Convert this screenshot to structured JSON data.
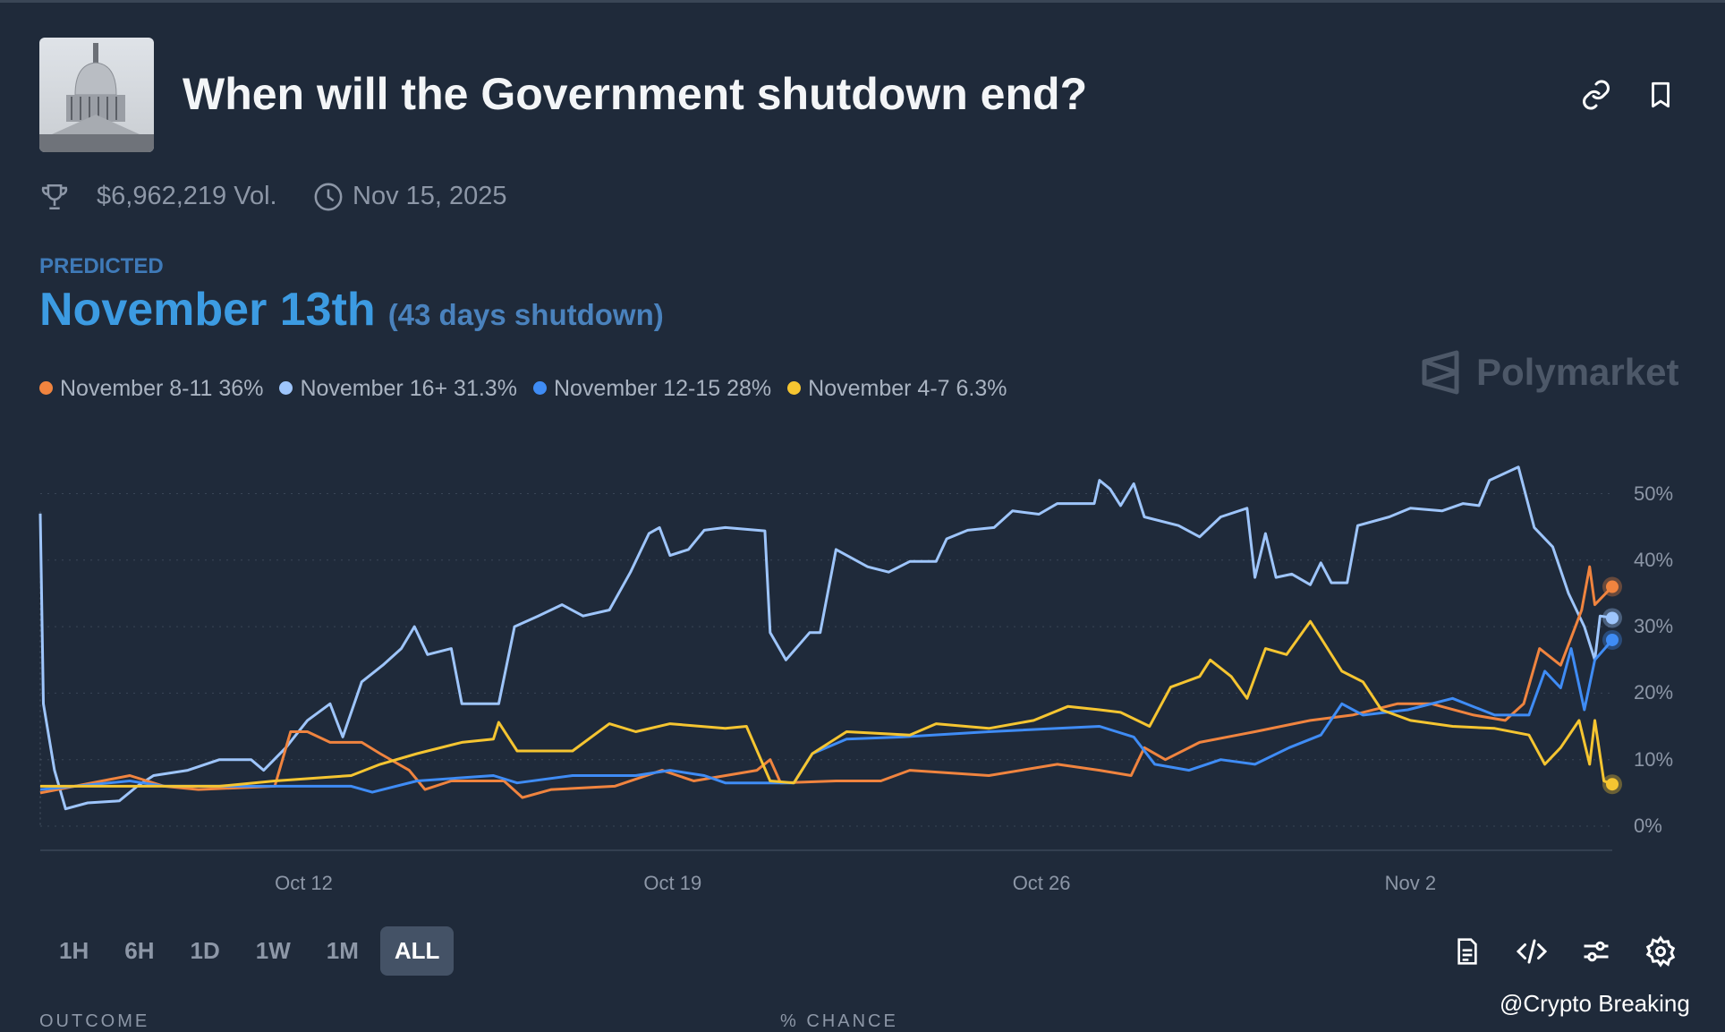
{
  "header": {
    "title": "When will the Government shutdown end?",
    "volume": "$6,962,219 Vol.",
    "end_date": "Nov 15, 2025"
  },
  "prediction": {
    "label": "PREDICTED",
    "value": "November 13th",
    "sub": "(43 days shutdown)"
  },
  "legend": [
    {
      "label": "November 8-11 36%",
      "color": "#f0843f"
    },
    {
      "label": "November 16+ 31.3%",
      "color": "#9ec5fb"
    },
    {
      "label": "November 12-15 28%",
      "color": "#3f8cf5"
    },
    {
      "label": "November 4-7 6.3%",
      "color": "#f5c531"
    }
  ],
  "brand": "Polymarket",
  "time_ranges": [
    "1H",
    "6H",
    "1D",
    "1W",
    "1M",
    "ALL"
  ],
  "active_range": "ALL",
  "table_headers": {
    "outcome": "OUTCOME",
    "chance": "% CHANCE"
  },
  "watermark": "@Crypto Breaking",
  "chart_data": {
    "type": "line",
    "x_unit": "days since Oct 7",
    "x_ticks": [
      {
        "day": 5,
        "label": "Oct 12"
      },
      {
        "day": 12,
        "label": "Oct 19"
      },
      {
        "day": 19,
        "label": "Oct 26"
      },
      {
        "day": 26,
        "label": "Nov 2"
      }
    ],
    "y_ticks": [
      {
        "v": 0,
        "label": "0%"
      },
      {
        "v": 10,
        "label": "10%"
      },
      {
        "v": 20,
        "label": "20%"
      },
      {
        "v": 30,
        "label": "30%"
      },
      {
        "v": 40,
        "label": "40%"
      },
      {
        "v": 50,
        "label": "50%"
      }
    ],
    "xlim": [
      0,
      29.83
    ],
    "ylim": [
      0,
      50
    ],
    "grid": true,
    "legend_position": "top-left",
    "series": [
      {
        "name": "November 16+",
        "color": "#9ec5fb",
        "points": [
          [
            0,
            47
          ],
          [
            0.06,
            18.4
          ],
          [
            0.27,
            8.4
          ],
          [
            0.48,
            2.6
          ],
          [
            0.9,
            3.5
          ],
          [
            1.5,
            3.8
          ],
          [
            1.84,
            6
          ],
          [
            2.15,
            7.6
          ],
          [
            2.8,
            8.4
          ],
          [
            3.4,
            10
          ],
          [
            4,
            10
          ],
          [
            4.24,
            8.4
          ],
          [
            4.66,
            11.8
          ],
          [
            5.07,
            15.9
          ],
          [
            5.5,
            18.4
          ],
          [
            5.74,
            13.4
          ],
          [
            6.1,
            21.7
          ],
          [
            6.5,
            24.2
          ],
          [
            6.85,
            26.7
          ],
          [
            7.1,
            30
          ],
          [
            7.35,
            25.8
          ],
          [
            7.8,
            26.7
          ],
          [
            8,
            18.4
          ],
          [
            8.7,
            18.4
          ],
          [
            9,
            30
          ],
          [
            9.45,
            31.6
          ],
          [
            9.9,
            33.3
          ],
          [
            10.3,
            31.6
          ],
          [
            10.8,
            32.5
          ],
          [
            11.2,
            38.2
          ],
          [
            11.55,
            44
          ],
          [
            11.75,
            44.9
          ],
          [
            11.95,
            40.7
          ],
          [
            12.3,
            41.6
          ],
          [
            12.6,
            44.5
          ],
          [
            13,
            44.9
          ],
          [
            13.75,
            44.4
          ],
          [
            13.85,
            29.1
          ],
          [
            14.15,
            25
          ],
          [
            14.6,
            29.1
          ],
          [
            14.8,
            29.1
          ],
          [
            15.1,
            41.6
          ],
          [
            15.7,
            39
          ],
          [
            16.1,
            38.2
          ],
          [
            16.5,
            39.8
          ],
          [
            17,
            39.8
          ],
          [
            17.2,
            43.2
          ],
          [
            17.6,
            44.5
          ],
          [
            18.1,
            44.9
          ],
          [
            18.45,
            47.4
          ],
          [
            18.95,
            46.9
          ],
          [
            19.3,
            48.5
          ],
          [
            20,
            48.5
          ],
          [
            20.1,
            52
          ],
          [
            20.3,
            50.7
          ],
          [
            20.5,
            48.2
          ],
          [
            20.75,
            51.5
          ],
          [
            20.95,
            46.5
          ],
          [
            21.6,
            45.2
          ],
          [
            22,
            43.5
          ],
          [
            22.4,
            46.5
          ],
          [
            22.9,
            47.8
          ],
          [
            23.05,
            37.4
          ],
          [
            23.25,
            44
          ],
          [
            23.45,
            37.4
          ],
          [
            23.75,
            37.9
          ],
          [
            24.1,
            36.3
          ],
          [
            24.3,
            39.6
          ],
          [
            24.5,
            36.6
          ],
          [
            24.8,
            36.6
          ],
          [
            25,
            45.2
          ],
          [
            25.6,
            46.5
          ],
          [
            26,
            47.8
          ],
          [
            26.6,
            47.4
          ],
          [
            27,
            48.5
          ],
          [
            27.3,
            48.2
          ],
          [
            27.5,
            52
          ],
          [
            28.05,
            54
          ],
          [
            28.35,
            44.9
          ],
          [
            28.7,
            42
          ],
          [
            29,
            35
          ],
          [
            29.3,
            30
          ],
          [
            29.5,
            25
          ],
          [
            29.6,
            31.6
          ],
          [
            29.83,
            31.3
          ]
        ]
      },
      {
        "name": "November 8-11",
        "color": "#f0843f",
        "points": [
          [
            0,
            5
          ],
          [
            1.7,
            7.6
          ],
          [
            2.35,
            6
          ],
          [
            3,
            5.5
          ],
          [
            4.45,
            6
          ],
          [
            4.75,
            14.2
          ],
          [
            5.07,
            14.2
          ],
          [
            5.5,
            12.6
          ],
          [
            6.1,
            12.6
          ],
          [
            6.45,
            10.9
          ],
          [
            7,
            8.4
          ],
          [
            7.3,
            5.5
          ],
          [
            7.8,
            6.8
          ],
          [
            8.8,
            6.8
          ],
          [
            9.15,
            4.3
          ],
          [
            9.7,
            5.5
          ],
          [
            10.9,
            6
          ],
          [
            11.8,
            8.4
          ],
          [
            12.4,
            6.8
          ],
          [
            13.6,
            8.4
          ],
          [
            13.85,
            10
          ],
          [
            14.05,
            6.5
          ],
          [
            15.1,
            6.8
          ],
          [
            15.95,
            6.8
          ],
          [
            16.5,
            8.4
          ],
          [
            18,
            7.6
          ],
          [
            19.3,
            9.3
          ],
          [
            20.1,
            8.4
          ],
          [
            20.7,
            7.6
          ],
          [
            20.95,
            11.8
          ],
          [
            21.35,
            10
          ],
          [
            22,
            12.6
          ],
          [
            23.05,
            14.2
          ],
          [
            24.1,
            15.9
          ],
          [
            24.9,
            16.7
          ],
          [
            25.75,
            18.4
          ],
          [
            26.4,
            18.4
          ],
          [
            27.2,
            16.7
          ],
          [
            27.8,
            15.9
          ],
          [
            28.15,
            18.4
          ],
          [
            28.45,
            26.7
          ],
          [
            28.85,
            24.2
          ],
          [
            29.05,
            28.3
          ],
          [
            29.25,
            32.5
          ],
          [
            29.4,
            39
          ],
          [
            29.5,
            33.3
          ],
          [
            29.83,
            36
          ]
        ]
      },
      {
        "name": "November 12-15",
        "color": "#3f8cf5",
        "points": [
          [
            0,
            5.5
          ],
          [
            1.7,
            6.8
          ],
          [
            2.35,
            6
          ],
          [
            5.9,
            6
          ],
          [
            6.3,
            5.1
          ],
          [
            7.15,
            6.8
          ],
          [
            8.6,
            7.6
          ],
          [
            9.05,
            6.5
          ],
          [
            10.1,
            7.6
          ],
          [
            11.3,
            7.6
          ],
          [
            11.95,
            8.4
          ],
          [
            12.6,
            7.6
          ],
          [
            13,
            6.5
          ],
          [
            14.3,
            6.5
          ],
          [
            14.65,
            10.9
          ],
          [
            15.3,
            13.1
          ],
          [
            16.35,
            13.4
          ],
          [
            18,
            14.2
          ],
          [
            20.1,
            15
          ],
          [
            20.75,
            13.4
          ],
          [
            21.15,
            9.3
          ],
          [
            21.8,
            8.4
          ],
          [
            22.4,
            10
          ],
          [
            23.05,
            9.3
          ],
          [
            23.7,
            11.8
          ],
          [
            24.3,
            13.7
          ],
          [
            24.7,
            18.4
          ],
          [
            25.1,
            16.7
          ],
          [
            25.95,
            17.5
          ],
          [
            26.8,
            19.2
          ],
          [
            27.6,
            16.7
          ],
          [
            28.25,
            16.7
          ],
          [
            28.55,
            23.3
          ],
          [
            28.85,
            20.8
          ],
          [
            29.05,
            26.7
          ],
          [
            29.3,
            17.5
          ],
          [
            29.5,
            25
          ],
          [
            29.83,
            28
          ]
        ]
      },
      {
        "name": "November 4-7",
        "color": "#f5c531",
        "points": [
          [
            0,
            6
          ],
          [
            3.4,
            6
          ],
          [
            4.45,
            6.8
          ],
          [
            5.9,
            7.6
          ],
          [
            6.45,
            9.3
          ],
          [
            7.15,
            10.9
          ],
          [
            8,
            12.6
          ],
          [
            8.6,
            13.1
          ],
          [
            8.7,
            15.6
          ],
          [
            9.05,
            11.3
          ],
          [
            10.1,
            11.3
          ],
          [
            10.8,
            15.4
          ],
          [
            11.3,
            14.2
          ],
          [
            11.95,
            15.4
          ],
          [
            13,
            14.7
          ],
          [
            13.4,
            15
          ],
          [
            13.85,
            6.8
          ],
          [
            14.3,
            6.5
          ],
          [
            14.65,
            10.9
          ],
          [
            15.3,
            14.2
          ],
          [
            16.5,
            13.7
          ],
          [
            17,
            15.4
          ],
          [
            18,
            14.7
          ],
          [
            18.85,
            15.9
          ],
          [
            19.5,
            18
          ],
          [
            20.1,
            17.5
          ],
          [
            20.5,
            17.1
          ],
          [
            21.05,
            15
          ],
          [
            21.45,
            20.9
          ],
          [
            22,
            22.5
          ],
          [
            22.2,
            25
          ],
          [
            22.6,
            22.5
          ],
          [
            22.9,
            19.2
          ],
          [
            23.25,
            26.7
          ],
          [
            23.65,
            25.8
          ],
          [
            24.1,
            30.8
          ],
          [
            24.3,
            28.3
          ],
          [
            24.7,
            23.3
          ],
          [
            25.1,
            21.7
          ],
          [
            25.45,
            17.5
          ],
          [
            26,
            15.9
          ],
          [
            26.8,
            15
          ],
          [
            27.6,
            14.7
          ],
          [
            28.25,
            13.7
          ],
          [
            28.55,
            9.3
          ],
          [
            28.85,
            11.8
          ],
          [
            29.2,
            15.9
          ],
          [
            29.4,
            9.3
          ],
          [
            29.5,
            15.9
          ],
          [
            29.67,
            6.8
          ],
          [
            29.83,
            6.3
          ]
        ]
      }
    ]
  }
}
